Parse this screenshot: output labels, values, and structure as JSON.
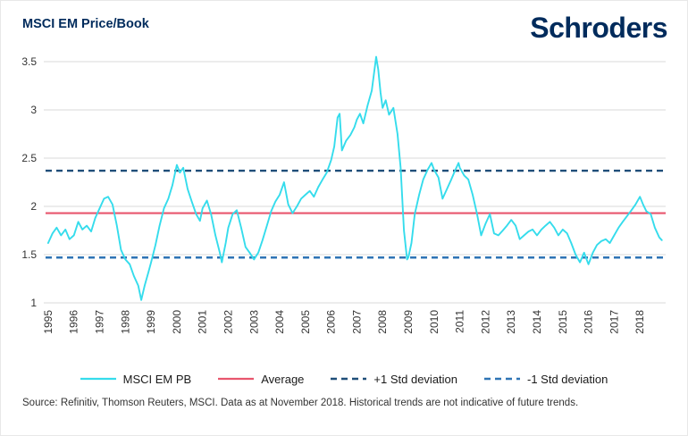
{
  "header": {
    "title": "MSCI EM Price/Book",
    "logo": "Schroders"
  },
  "source": "Source: Refinitiv, Thomson Reuters, MSCI. Data as at November 2018. Historical trends are not indicative of future trends.",
  "legend": [
    {
      "label": "MSCI EM PB",
      "color": "#35dcec",
      "dash": ""
    },
    {
      "label": "Average",
      "color": "#e8566d",
      "dash": ""
    },
    {
      "label": "+1 Std deviation",
      "color": "#1f4e79",
      "dash": "7 5"
    },
    {
      "label": "-1 Std deviation",
      "color": "#2e74b5",
      "dash": "7 5"
    }
  ],
  "colors": {
    "brand_navy": "#002b5c",
    "gridline": "#d9d9d9",
    "axis_text": "#333333"
  },
  "chart_data": {
    "type": "line",
    "title": "MSCI EM Price/Book",
    "xlabel": "",
    "ylabel": "",
    "grid": "horizontal",
    "legend_position": "bottom",
    "ylim": [
      1,
      3.5
    ],
    "y_ticks": [
      1,
      1.5,
      2,
      2.5,
      3,
      3.5
    ],
    "x_ticks": [
      1995,
      1996,
      1997,
      1998,
      1999,
      2000,
      2001,
      2002,
      2003,
      2004,
      2005,
      2006,
      2007,
      2008,
      2009,
      2010,
      2011,
      2012,
      2013,
      2014,
      2015,
      2016,
      2017,
      2018
    ],
    "reference_lines": [
      {
        "name": "Average",
        "value": 1.93,
        "color": "#e8566d",
        "dash": ""
      },
      {
        "name": "+1 Std deviation",
        "value": 2.37,
        "color": "#1f4e79",
        "dash": "7 5"
      },
      {
        "name": "-1 Std deviation",
        "value": 1.47,
        "color": "#2e74b5",
        "dash": "7 5"
      }
    ],
    "series": [
      {
        "name": "MSCI EM PB",
        "color": "#35dcec",
        "points": [
          [
            1995.0,
            1.62
          ],
          [
            1995.17,
            1.72
          ],
          [
            1995.33,
            1.78
          ],
          [
            1995.5,
            1.7
          ],
          [
            1995.67,
            1.76
          ],
          [
            1995.83,
            1.66
          ],
          [
            1996.0,
            1.7
          ],
          [
            1996.17,
            1.84
          ],
          [
            1996.33,
            1.76
          ],
          [
            1996.5,
            1.8
          ],
          [
            1996.67,
            1.74
          ],
          [
            1996.83,
            1.88
          ],
          [
            1997.0,
            1.98
          ],
          [
            1997.17,
            2.08
          ],
          [
            1997.33,
            2.1
          ],
          [
            1997.5,
            2.02
          ],
          [
            1997.67,
            1.8
          ],
          [
            1997.83,
            1.55
          ],
          [
            1998.0,
            1.45
          ],
          [
            1998.17,
            1.4
          ],
          [
            1998.33,
            1.28
          ],
          [
            1998.5,
            1.18
          ],
          [
            1998.62,
            1.03
          ],
          [
            1998.75,
            1.18
          ],
          [
            1998.9,
            1.32
          ],
          [
            1999.0,
            1.42
          ],
          [
            1999.17,
            1.6
          ],
          [
            1999.33,
            1.8
          ],
          [
            1999.5,
            1.98
          ],
          [
            1999.67,
            2.08
          ],
          [
            1999.83,
            2.22
          ],
          [
            2000.0,
            2.43
          ],
          [
            2000.12,
            2.35
          ],
          [
            2000.25,
            2.4
          ],
          [
            2000.42,
            2.18
          ],
          [
            2000.58,
            2.05
          ],
          [
            2000.75,
            1.92
          ],
          [
            2000.9,
            1.85
          ],
          [
            2001.0,
            1.98
          ],
          [
            2001.17,
            2.06
          ],
          [
            2001.33,
            1.92
          ],
          [
            2001.5,
            1.7
          ],
          [
            2001.67,
            1.52
          ],
          [
            2001.75,
            1.42
          ],
          [
            2001.9,
            1.62
          ],
          [
            2002.0,
            1.78
          ],
          [
            2002.17,
            1.92
          ],
          [
            2002.33,
            1.96
          ],
          [
            2002.5,
            1.78
          ],
          [
            2002.67,
            1.58
          ],
          [
            2002.83,
            1.52
          ],
          [
            2003.0,
            1.45
          ],
          [
            2003.17,
            1.52
          ],
          [
            2003.33,
            1.65
          ],
          [
            2003.5,
            1.8
          ],
          [
            2003.67,
            1.95
          ],
          [
            2003.83,
            2.05
          ],
          [
            2004.0,
            2.12
          ],
          [
            2004.17,
            2.25
          ],
          [
            2004.33,
            2.02
          ],
          [
            2004.5,
            1.93
          ],
          [
            2004.67,
            2.0
          ],
          [
            2004.83,
            2.08
          ],
          [
            2005.0,
            2.12
          ],
          [
            2005.17,
            2.16
          ],
          [
            2005.33,
            2.1
          ],
          [
            2005.5,
            2.2
          ],
          [
            2005.67,
            2.28
          ],
          [
            2005.83,
            2.35
          ],
          [
            2006.0,
            2.48
          ],
          [
            2006.12,
            2.62
          ],
          [
            2006.25,
            2.92
          ],
          [
            2006.33,
            2.96
          ],
          [
            2006.42,
            2.58
          ],
          [
            2006.58,
            2.68
          ],
          [
            2006.75,
            2.74
          ],
          [
            2006.9,
            2.82
          ],
          [
            2007.0,
            2.9
          ],
          [
            2007.12,
            2.96
          ],
          [
            2007.25,
            2.86
          ],
          [
            2007.42,
            3.05
          ],
          [
            2007.58,
            3.2
          ],
          [
            2007.75,
            3.55
          ],
          [
            2007.83,
            3.42
          ],
          [
            2007.92,
            3.18
          ],
          [
            2008.0,
            3.02
          ],
          [
            2008.12,
            3.1
          ],
          [
            2008.25,
            2.95
          ],
          [
            2008.42,
            3.02
          ],
          [
            2008.58,
            2.75
          ],
          [
            2008.7,
            2.4
          ],
          [
            2008.83,
            1.75
          ],
          [
            2008.95,
            1.45
          ],
          [
            2009.0,
            1.47
          ],
          [
            2009.12,
            1.62
          ],
          [
            2009.25,
            1.92
          ],
          [
            2009.42,
            2.12
          ],
          [
            2009.58,
            2.28
          ],
          [
            2009.75,
            2.38
          ],
          [
            2009.9,
            2.45
          ],
          [
            2010.0,
            2.38
          ],
          [
            2010.17,
            2.3
          ],
          [
            2010.33,
            2.08
          ],
          [
            2010.5,
            2.18
          ],
          [
            2010.67,
            2.28
          ],
          [
            2010.83,
            2.38
          ],
          [
            2010.95,
            2.45
          ],
          [
            2011.0,
            2.4
          ],
          [
            2011.17,
            2.32
          ],
          [
            2011.33,
            2.28
          ],
          [
            2011.5,
            2.12
          ],
          [
            2011.67,
            1.92
          ],
          [
            2011.83,
            1.7
          ],
          [
            2012.0,
            1.82
          ],
          [
            2012.17,
            1.92
          ],
          [
            2012.33,
            1.72
          ],
          [
            2012.5,
            1.7
          ],
          [
            2012.67,
            1.75
          ],
          [
            2012.83,
            1.8
          ],
          [
            2013.0,
            1.86
          ],
          [
            2013.17,
            1.8
          ],
          [
            2013.33,
            1.66
          ],
          [
            2013.5,
            1.7
          ],
          [
            2013.67,
            1.74
          ],
          [
            2013.83,
            1.76
          ],
          [
            2014.0,
            1.7
          ],
          [
            2014.17,
            1.76
          ],
          [
            2014.33,
            1.8
          ],
          [
            2014.5,
            1.84
          ],
          [
            2014.67,
            1.78
          ],
          [
            2014.83,
            1.7
          ],
          [
            2015.0,
            1.76
          ],
          [
            2015.17,
            1.72
          ],
          [
            2015.33,
            1.62
          ],
          [
            2015.5,
            1.5
          ],
          [
            2015.67,
            1.42
          ],
          [
            2015.83,
            1.52
          ],
          [
            2016.0,
            1.4
          ],
          [
            2016.17,
            1.52
          ],
          [
            2016.33,
            1.6
          ],
          [
            2016.5,
            1.64
          ],
          [
            2016.67,
            1.66
          ],
          [
            2016.83,
            1.62
          ],
          [
            2017.0,
            1.7
          ],
          [
            2017.17,
            1.78
          ],
          [
            2017.33,
            1.84
          ],
          [
            2017.5,
            1.9
          ],
          [
            2017.67,
            1.96
          ],
          [
            2017.83,
            2.02
          ],
          [
            2018.0,
            2.1
          ],
          [
            2018.12,
            2.02
          ],
          [
            2018.25,
            1.95
          ],
          [
            2018.42,
            1.92
          ],
          [
            2018.58,
            1.78
          ],
          [
            2018.75,
            1.68
          ],
          [
            2018.85,
            1.65
          ]
        ]
      }
    ]
  }
}
